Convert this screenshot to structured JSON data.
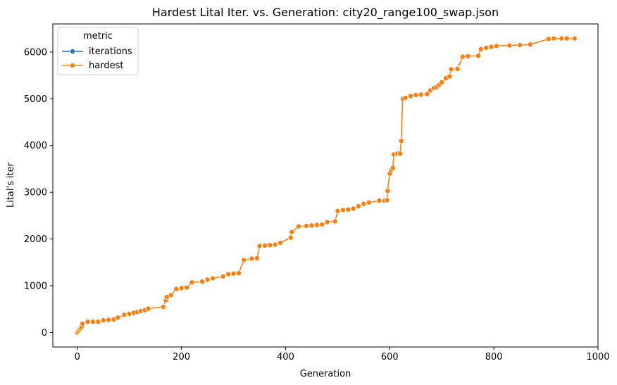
{
  "chart_data": {
    "type": "line",
    "title": "Hardest Lital Iter. vs. Generation: city20_range100_swap.json",
    "xlabel": "Generation",
    "ylabel": "Lital's iter",
    "xlim": [
      -47,
      1000
    ],
    "ylim": [
      -310,
      6600
    ],
    "xticks": [
      0,
      200,
      400,
      600,
      800,
      1000
    ],
    "yticks": [
      0,
      1000,
      2000,
      3000,
      4000,
      5000,
      6000
    ],
    "grid": false,
    "legend": {
      "title": "metric",
      "placement": "top-left",
      "entries": [
        {
          "label": "iterations",
          "color": "#1f77b4"
        },
        {
          "label": "hardest",
          "color": "#ff7f0e"
        }
      ]
    },
    "series": [
      {
        "name": "hardest",
        "color": "#ff7f0e",
        "points": [
          [
            0,
            0
          ],
          [
            2,
            30
          ],
          [
            4,
            60
          ],
          [
            6,
            90
          ],
          [
            8,
            120
          ],
          [
            10,
            190
          ],
          [
            20,
            230
          ],
          [
            30,
            230
          ],
          [
            40,
            230
          ],
          [
            50,
            260
          ],
          [
            60,
            270
          ],
          [
            70,
            280
          ],
          [
            78,
            320
          ],
          [
            90,
            380
          ],
          [
            100,
            400
          ],
          [
            108,
            420
          ],
          [
            115,
            440
          ],
          [
            122,
            460
          ],
          [
            130,
            480
          ],
          [
            136,
            510
          ],
          [
            165,
            550
          ],
          [
            170,
            690
          ],
          [
            172,
            760
          ],
          [
            180,
            800
          ],
          [
            190,
            930
          ],
          [
            200,
            950
          ],
          [
            210,
            960
          ],
          [
            220,
            1070
          ],
          [
            240,
            1090
          ],
          [
            250,
            1130
          ],
          [
            260,
            1160
          ],
          [
            280,
            1200
          ],
          [
            290,
            1250
          ],
          [
            300,
            1260
          ],
          [
            310,
            1270
          ],
          [
            320,
            1550
          ],
          [
            335,
            1580
          ],
          [
            345,
            1590
          ],
          [
            350,
            1850
          ],
          [
            360,
            1860
          ],
          [
            370,
            1870
          ],
          [
            380,
            1880
          ],
          [
            390,
            1920
          ],
          [
            410,
            2030
          ],
          [
            412,
            2150
          ],
          [
            425,
            2270
          ],
          [
            440,
            2280
          ],
          [
            450,
            2290
          ],
          [
            460,
            2300
          ],
          [
            470,
            2310
          ],
          [
            480,
            2360
          ],
          [
            495,
            2380
          ],
          [
            500,
            2600
          ],
          [
            510,
            2620
          ],
          [
            520,
            2630
          ],
          [
            530,
            2650
          ],
          [
            540,
            2700
          ],
          [
            550,
            2750
          ],
          [
            560,
            2780
          ],
          [
            580,
            2820
          ],
          [
            590,
            2820
          ],
          [
            595,
            2830
          ],
          [
            596,
            3030
          ],
          [
            600,
            3400
          ],
          [
            603,
            3480
          ],
          [
            606,
            3520
          ],
          [
            608,
            3810
          ],
          [
            615,
            3830
          ],
          [
            620,
            3830
          ],
          [
            622,
            4100
          ],
          [
            625,
            5000
          ],
          [
            630,
            5020
          ],
          [
            640,
            5060
          ],
          [
            650,
            5080
          ],
          [
            660,
            5090
          ],
          [
            672,
            5100
          ],
          [
            678,
            5180
          ],
          [
            685,
            5230
          ],
          [
            690,
            5250
          ],
          [
            695,
            5300
          ],
          [
            700,
            5350
          ],
          [
            708,
            5440
          ],
          [
            715,
            5480
          ],
          [
            718,
            5630
          ],
          [
            730,
            5640
          ],
          [
            740,
            5900
          ],
          [
            750,
            5910
          ],
          [
            770,
            5920
          ],
          [
            775,
            6060
          ],
          [
            785,
            6090
          ],
          [
            795,
            6110
          ],
          [
            805,
            6130
          ],
          [
            830,
            6140
          ],
          [
            850,
            6150
          ],
          [
            870,
            6160
          ],
          [
            905,
            6280
          ],
          [
            915,
            6290
          ],
          [
            930,
            6290
          ],
          [
            940,
            6290
          ],
          [
            955,
            6290
          ]
        ]
      }
    ]
  }
}
